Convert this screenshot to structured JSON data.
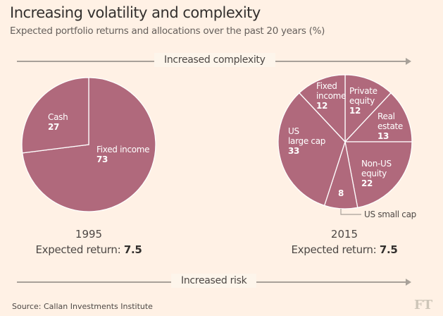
{
  "header": {
    "title": "Increasing volatility and complexity",
    "subtitle": "Expected portfolio returns and allocations over the past 20 years (%)"
  },
  "arrows": {
    "top_label": "Increased complexity",
    "bottom_label": "Increased risk"
  },
  "panels": [
    {
      "year": "1995",
      "return_label": "Expected return: ",
      "return_value": "7.5"
    },
    {
      "year": "2015",
      "return_label": "Expected return: ",
      "return_value": "7.5"
    }
  ],
  "footer": {
    "source": "Source: Callan Investments Institute",
    "logo": "FT"
  },
  "colors": {
    "background": "#fff1e5",
    "slice": "#b0697c",
    "slice_border": "#fff1e5",
    "arrow": "#a8a199"
  },
  "chart_data": [
    {
      "type": "pie",
      "title": "1995",
      "start": "top, clockwise",
      "slices": [
        {
          "label": "Fixed income",
          "value": 73
        },
        {
          "label": "Cash",
          "value": 27
        }
      ]
    },
    {
      "type": "pie",
      "title": "2015",
      "start": "top, clockwise",
      "slices": [
        {
          "label": "Private equity",
          "value": 12
        },
        {
          "label": "Real estate",
          "value": 13
        },
        {
          "label": "Non-US equity",
          "value": 22
        },
        {
          "label": "US small cap",
          "value": 8
        },
        {
          "label": "US large cap",
          "value": 33
        },
        {
          "label": "Fixed income",
          "value": 12
        }
      ]
    }
  ]
}
